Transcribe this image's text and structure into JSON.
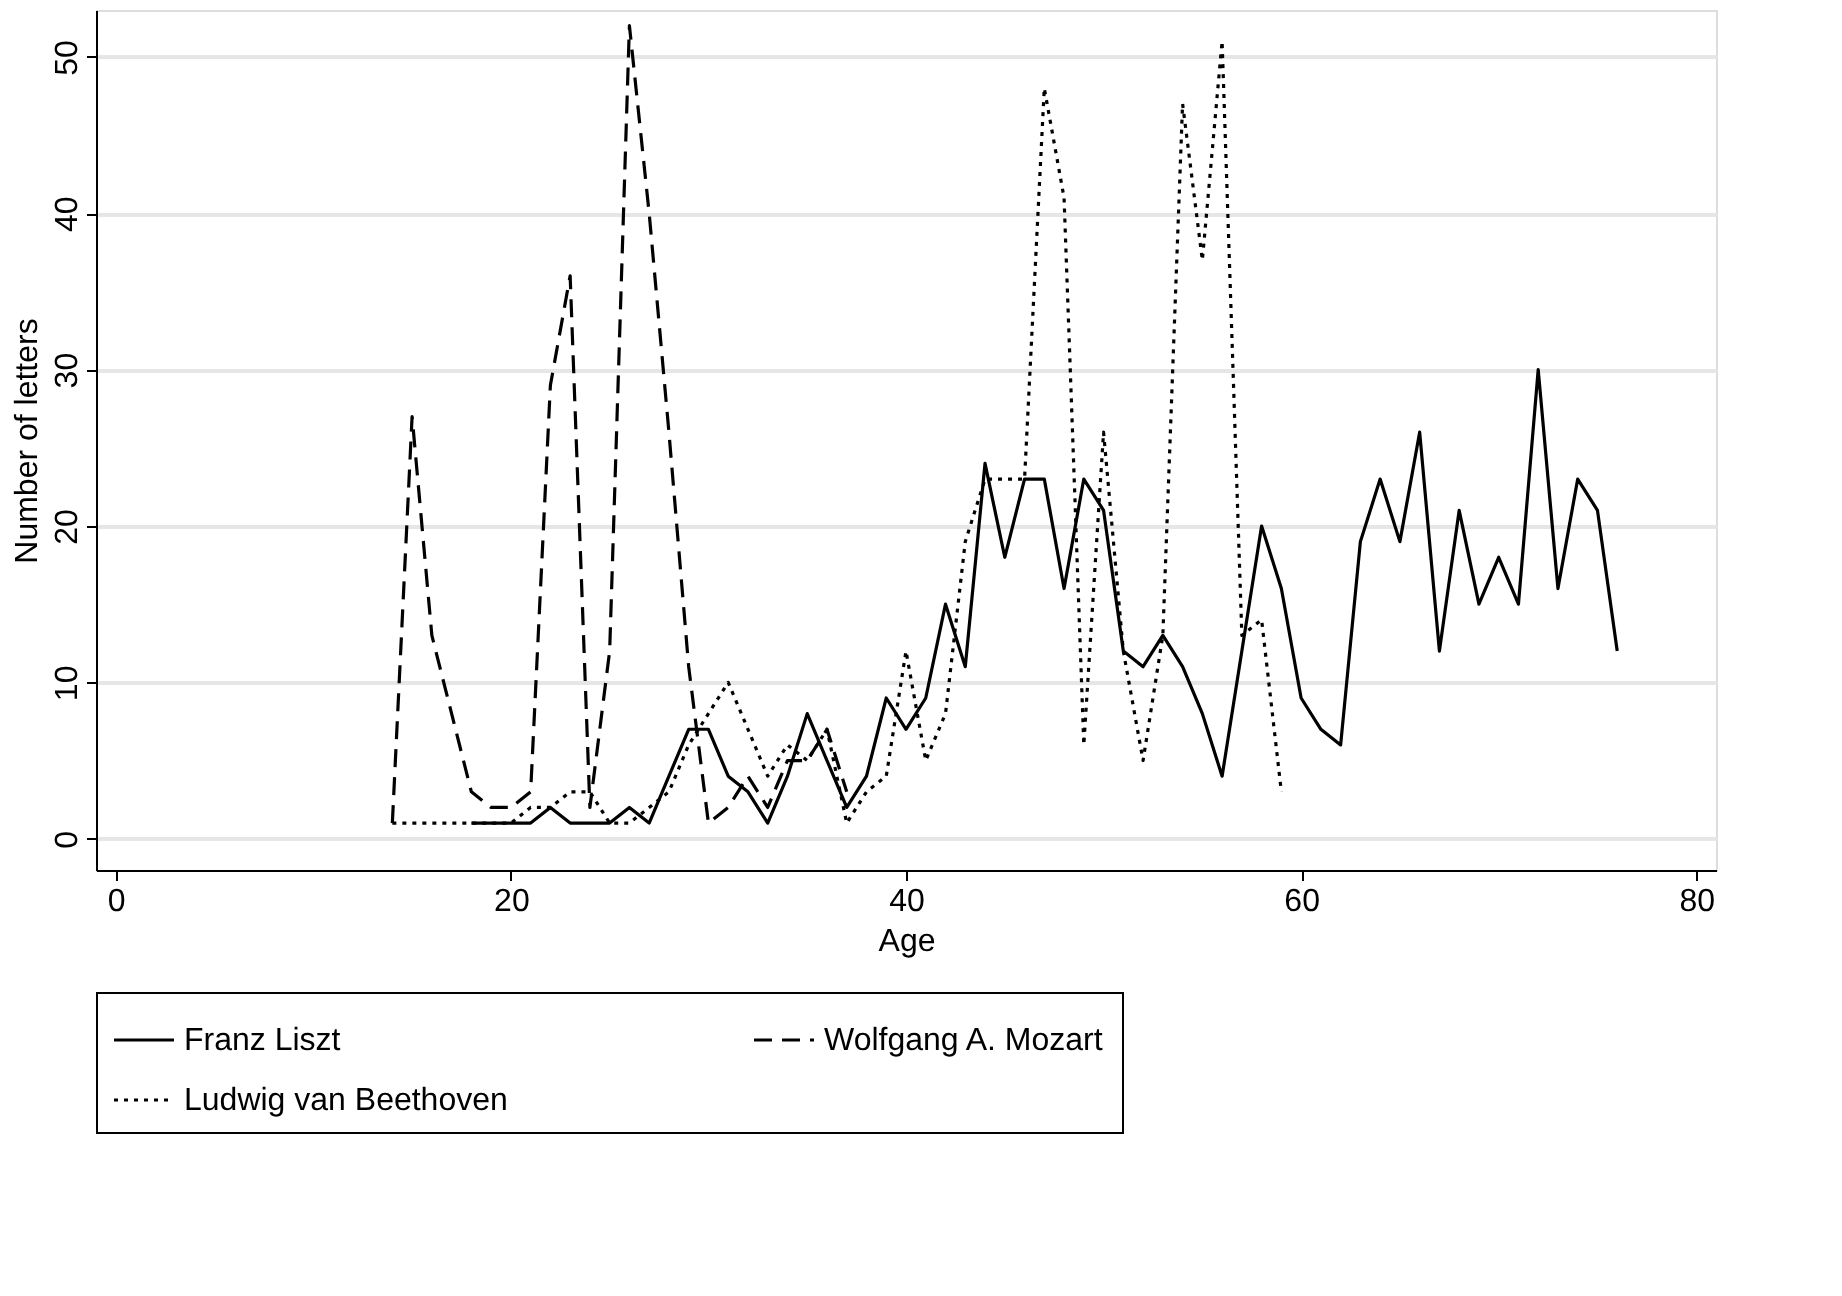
{
  "chart_data": {
    "type": "line",
    "xlabel": "Age",
    "ylabel": "Number of letters",
    "xlim": [
      -1,
      81
    ],
    "xticks": [
      0,
      20,
      40,
      60,
      80
    ],
    "ylim": [
      -2,
      53
    ],
    "yticks": [
      0,
      10,
      20,
      30,
      40,
      50
    ],
    "grid": "y",
    "legend": "bottom",
    "marker": "none",
    "series": [
      {
        "name": "Franz Liszt",
        "color": "#000000",
        "line_style": "solid",
        "x": [
          18,
          19,
          20,
          21,
          22,
          23,
          24,
          25,
          26,
          27,
          28,
          29,
          30,
          31,
          32,
          33,
          34,
          35,
          36,
          37,
          38,
          39,
          40,
          41,
          42,
          43,
          44,
          45,
          46,
          47,
          48,
          49,
          50,
          51,
          52,
          53,
          54,
          55,
          56,
          57,
          58,
          59,
          60,
          61,
          62,
          63,
          64,
          65,
          66,
          67,
          68,
          69,
          70,
          71,
          72,
          73,
          74,
          75,
          76
        ],
        "values": [
          1,
          1,
          1,
          1,
          2,
          1,
          1,
          1,
          2,
          1,
          4,
          7,
          7,
          4,
          3,
          1,
          4,
          8,
          5,
          2,
          4,
          9,
          7,
          9,
          15,
          11,
          24,
          18,
          23,
          23,
          16,
          23,
          21,
          12,
          11,
          13,
          11,
          8,
          4,
          12,
          20,
          16,
          9,
          7,
          6,
          19,
          23,
          19,
          26,
          12,
          21,
          15,
          18,
          15,
          30,
          16,
          23,
          21,
          12
        ]
      },
      {
        "name": "Wolfgang A. Mozart",
        "color": "#000000",
        "line_style": "dashed",
        "x": [
          14,
          15,
          16,
          17,
          18,
          19,
          20,
          21,
          22,
          23,
          24,
          25,
          26,
          27,
          28,
          29,
          30,
          31,
          32,
          33,
          34,
          35,
          36,
          37
        ],
        "values": [
          1,
          27,
          13,
          8,
          3,
          2,
          2,
          3,
          29,
          36,
          2,
          12,
          52,
          40,
          26,
          11,
          1,
          2,
          4,
          2,
          5,
          5,
          7,
          3
        ]
      },
      {
        "name": "Ludwig van Beethoven",
        "color": "#000000",
        "line_style": "dotted",
        "x": [
          14,
          15,
          16,
          17,
          18,
          19,
          20,
          21,
          22,
          23,
          24,
          25,
          26,
          27,
          28,
          29,
          30,
          31,
          32,
          33,
          34,
          35,
          36,
          37,
          38,
          39,
          40,
          41,
          42,
          43,
          44,
          45,
          46,
          47,
          48,
          49,
          50,
          51,
          52,
          53,
          54,
          55,
          56,
          57,
          58,
          59
        ],
        "values": [
          1,
          1,
          1,
          1,
          1,
          1,
          1,
          2,
          2,
          3,
          3,
          1,
          1,
          2,
          3,
          6,
          8,
          10,
          7,
          4,
          6,
          5,
          7,
          1,
          3,
          4,
          12,
          5,
          8,
          19,
          23,
          23,
          23,
          48,
          41,
          6,
          26,
          12,
          5,
          13,
          47,
          37,
          51,
          13,
          14,
          3
        ]
      }
    ]
  }
}
